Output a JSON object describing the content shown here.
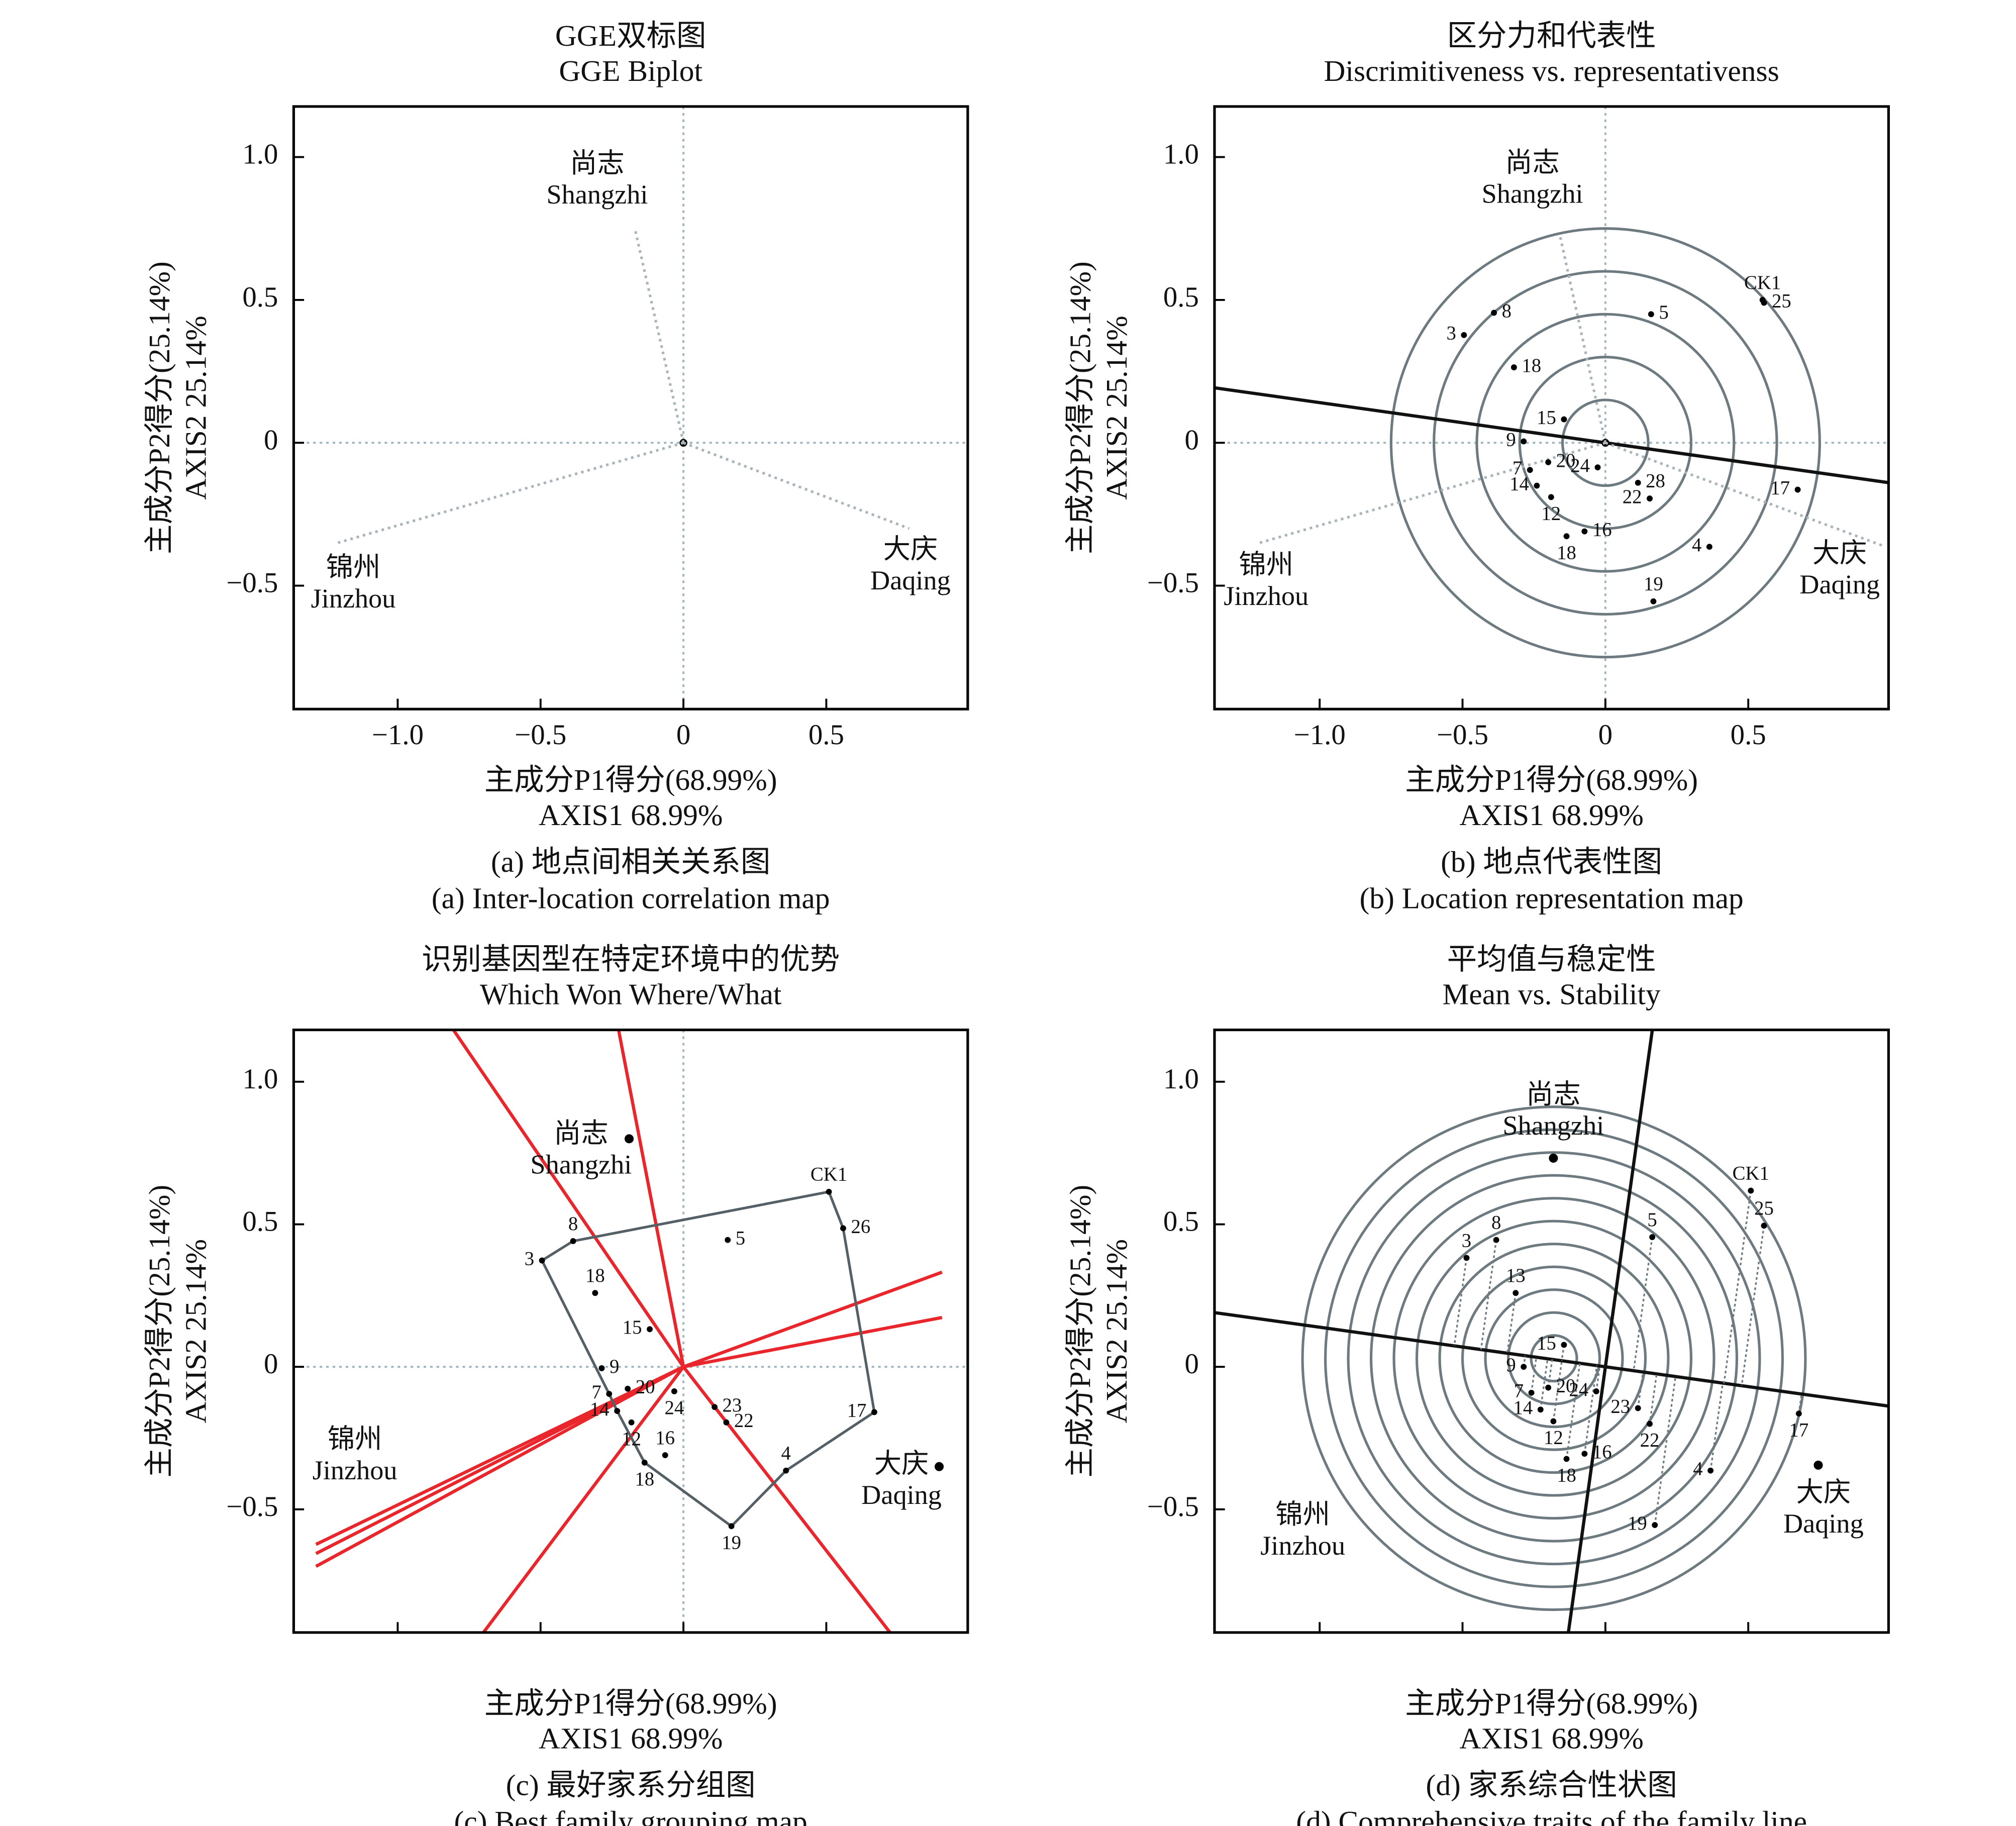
{
  "chart_data": [
    {
      "type": "scatter",
      "title": "GGE双标图",
      "subtitle": "GGE Biplot",
      "xlabel": [
        "主成分P1得分(68.99%)",
        "AXIS1 68.99%"
      ],
      "ylabel": [
        "主成分P2得分(25.14%)",
        "AXIS2 25.14%"
      ],
      "caption": [
        "(a) 地点间相关关系图",
        "(a) Inter-location correlation map"
      ],
      "xlim": [
        -1.364,
        0.995
      ],
      "ylim": [
        -0.932,
        1.177
      ],
      "xticks": [
        {
          "value": -1,
          "label": "−1.0"
        },
        {
          "value": -0.5,
          "label": "−0.5"
        },
        0,
        0.5
      ],
      "yticks": [
        {
          "value": -0.5,
          "label": "−0.5"
        },
        0,
        0.5,
        {
          "value": 1,
          "label": "1.0"
        }
      ],
      "xtick_labels": true,
      "zero_lines": true,
      "environments": {
        "style": "vector",
        "names": [
          "尚志",
          "锦州",
          "大庆"
        ],
        "names_en": [
          "Shangzhi",
          "Jinzhou",
          "Daqing"
        ],
        "x": [
          -0.17,
          -1.21,
          0.79
        ],
        "y": [
          0.75,
          -0.35,
          -0.3
        ]
      }
    },
    {
      "type": "scatter",
      "title": "区分力和代表性",
      "subtitle": "Discrimitiveness vs. representativenss",
      "xlabel": [
        "主成分P1得分(68.99%)",
        "AXIS1 68.99%"
      ],
      "ylabel": [
        "主成分P2得分(25.14%)",
        "AXIS2 25.14%"
      ],
      "caption": [
        "(b) 地点代表性图",
        "(b) Location representation map"
      ],
      "xlim": [
        -1.368,
        0.991
      ],
      "ylim": [
        -0.932,
        1.177
      ],
      "xticks": [
        {
          "value": -1,
          "label": "−1.0"
        },
        {
          "value": -0.5,
          "label": "−0.5"
        },
        0,
        0.5
      ],
      "yticks": [
        {
          "value": -0.5,
          "label": "−0.5"
        },
        0,
        0.5,
        {
          "value": 1,
          "label": "1.0"
        }
      ],
      "xtick_labels": true,
      "zero_lines": true,
      "environments": {
        "style": "vector",
        "names": [
          "尚志",
          "锦州",
          "大庆"
        ],
        "names_en": [
          "Shangzhi",
          "Jinzhou",
          "Daqing"
        ],
        "x": [
          -0.16,
          -1.21,
          0.97
        ],
        "y": [
          0.73,
          -0.35,
          -0.36
        ]
      },
      "points": {
        "labels": [
          "3",
          "8",
          "5",
          "CK1",
          "25",
          "18",
          "15",
          "9",
          "20",
          "7",
          "14",
          "12",
          "24",
          "28",
          "22",
          "16",
          "18",
          "4",
          "19",
          "17"
        ],
        "x": [
          -0.495,
          -0.39,
          0.16,
          0.55,
          0.555,
          -0.32,
          -0.145,
          -0.286,
          -0.2,
          -0.264,
          -0.24,
          -0.19,
          -0.027,
          0.114,
          0.155,
          -0.073,
          -0.136,
          0.364,
          0.168,
          0.673
        ],
        "y": [
          0.377,
          0.455,
          0.45,
          0.5,
          0.49,
          0.264,
          0.082,
          0.005,
          -0.068,
          -0.095,
          -0.15,
          -0.19,
          -0.086,
          -0.14,
          -0.195,
          -0.31,
          -0.327,
          -0.364,
          -0.555,
          -0.164
        ]
      },
      "circle_center": [
        0,
        0
      ],
      "circle_radii": [
        0.15,
        0.3,
        0.45,
        0.6,
        0.75
      ],
      "circle_color": "#6d7a80",
      "axis_slope": -0.1407
    },
    {
      "type": "scatter",
      "title": "识别基因型在特定环境中的优势",
      "subtitle": "Which Won Where/What",
      "xlabel": [
        "主成分P1得分(68.99%)",
        "AXIS1 68.99%"
      ],
      "ylabel": [
        "主成分P2得分(25.14%)",
        "AXIS2 25.14%"
      ],
      "caption": [
        "(c) 最好家系分组图",
        "(c) Best family grouping map"
      ],
      "xlim": [
        -1.364,
        0.995
      ],
      "ylim": [
        -0.932,
        1.182
      ],
      "xticks": [
        -1,
        -0.5,
        0,
        0.5
      ],
      "yticks": [
        {
          "value": -0.5,
          "label": "−0.5"
        },
        0,
        0.5,
        {
          "value": 1,
          "label": "1.0"
        }
      ],
      "xtick_labels": false,
      "zero_lines": true,
      "environments": {
        "style": "point",
        "names": [
          "尚志",
          "锦州",
          "大庆"
        ],
        "names_en": [
          "Shangzhi",
          "Jinzhou",
          "Daqing"
        ],
        "x": [
          -0.19,
          -1.15,
          0.895
        ],
        "y": [
          0.8,
          -0.318,
          -0.35
        ],
        "markers": [
          true,
          false,
          true
        ]
      },
      "points": {
        "labels": [
          "3",
          "8",
          "CK1",
          "26",
          "5",
          "18",
          "15",
          "9",
          "20",
          "7",
          "14",
          "12",
          "16",
          "18",
          "24",
          "23",
          "22",
          "4",
          "19",
          "17"
        ],
        "x": [
          -0.495,
          -0.386,
          0.509,
          0.559,
          0.155,
          -0.309,
          -0.118,
          -0.286,
          -0.195,
          -0.26,
          -0.232,
          -0.182,
          -0.064,
          -0.136,
          -0.032,
          0.109,
          0.15,
          0.359,
          0.168,
          0.668
        ],
        "y": [
          0.373,
          0.441,
          0.614,
          0.486,
          0.445,
          0.259,
          0.132,
          -0.005,
          -0.077,
          -0.095,
          -0.155,
          -0.195,
          -0.31,
          -0.336,
          -0.086,
          -0.141,
          -0.195,
          -0.364,
          -0.559,
          -0.159
        ]
      },
      "hull": [
        0,
        1,
        2,
        3,
        19,
        17,
        18,
        13,
        10,
        9
      ],
      "hull_color": "#556066",
      "rays": {
        "x": [
          -0.805,
          -0.227,
          0.905,
          0.905,
          0.723,
          -0.7,
          -1.286,
          -1.286,
          -1.286
        ],
        "y": [
          1.182,
          1.182,
          0.332,
          0.173,
          -0.932,
          -0.932,
          -0.623,
          -0.655,
          -0.7
        ]
      },
      "ray_color": "#e8262c"
    },
    {
      "type": "scatter",
      "title": "平均值与稳定性",
      "subtitle": "Mean vs. Stability",
      "xlabel": [
        "主成分P1得分(68.99%)",
        "AXIS1 68.99%"
      ],
      "ylabel": [
        "主成分P2得分(25.14%)",
        "AXIS2 25.14%"
      ],
      "caption": [
        "(d) 家系综合性状图",
        "(d) Comprehensive traits of the family line"
      ],
      "xlim": [
        -1.368,
        0.991
      ],
      "ylim": [
        -0.932,
        1.182
      ],
      "xticks": [
        -1,
        -0.5,
        0,
        0.5
      ],
      "yticks": [
        {
          "value": -0.5,
          "label": "−0.5"
        },
        0,
        0.5,
        {
          "value": 1,
          "label": "1.0"
        }
      ],
      "xtick_labels": false,
      "zero_lines": false,
      "environments": {
        "style": "point",
        "names": [
          "尚志",
          "锦州",
          "大庆"
        ],
        "names_en": [
          "Shangzhi",
          "Jinzhou",
          "Daqing"
        ],
        "x": [
          -0.182,
          -1.059,
          0.745
        ],
        "y": [
          0.732,
          -0.582,
          -0.345
        ],
        "markers": [
          true,
          false,
          true
        ]
      },
      "points": {
        "labels": [
          "CK1",
          "25",
          "5",
          "3",
          "8",
          "13",
          "15",
          "9",
          "7",
          "20",
          "24",
          "14",
          "12",
          "23",
          "22",
          "18",
          "16",
          "4",
          "19",
          "17"
        ],
        "x": [
          0.509,
          0.555,
          0.164,
          -0.486,
          -0.382,
          -0.314,
          -0.145,
          -0.286,
          -0.259,
          -0.2,
          -0.032,
          -0.227,
          -0.182,
          0.114,
          0.155,
          -0.136,
          -0.073,
          0.368,
          0.173,
          0.677
        ],
        "y": [
          0.618,
          0.495,
          0.455,
          0.382,
          0.445,
          0.259,
          0.077,
          0,
          -0.091,
          -0.073,
          -0.086,
          -0.15,
          -0.191,
          -0.145,
          -0.2,
          -0.323,
          -0.305,
          -0.364,
          -0.555,
          -0.164
        ]
      },
      "circle_center": [
        -0.18,
        0.03
      ],
      "circle_radii": [
        0.08,
        0.16,
        0.24,
        0.32,
        0.4,
        0.48,
        0.56,
        0.64,
        0.72,
        0.8,
        0.88
      ],
      "circle_color": "#6d7a80",
      "axis_slope": -0.139,
      "perpendicular": true,
      "projections": true
    }
  ]
}
